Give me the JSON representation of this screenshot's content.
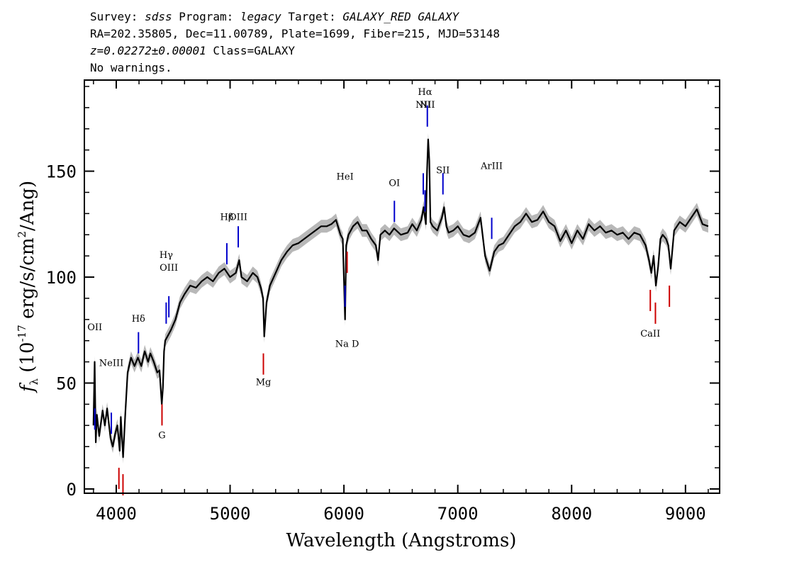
{
  "header": {
    "line1_parts": [
      {
        "t": "Survey: ",
        "i": false
      },
      {
        "t": "sdss",
        "i": true
      },
      {
        "t": " Program: ",
        "i": false
      },
      {
        "t": "legacy",
        "i": true
      },
      {
        "t": " Target: ",
        "i": false
      },
      {
        "t": "GALAXY_RED GALAXY",
        "i": true
      }
    ],
    "line2": "RA=202.35805, Dec=11.00789, Plate=1699, Fiber=215, MJD=53148",
    "line3_redshift": "z=0.02272±0.00001",
    "line3_class": " Class=GALAXY",
    "line4": "No warnings."
  },
  "chart_data": {
    "type": "line",
    "xlabel": "Wavelength (Angstroms)",
    "ylabel": "f_λ (10^-17 erg/s/cm^2/Ang)",
    "xlim": [
      3720,
      9300
    ],
    "ylim": [
      -2,
      193
    ],
    "x_ticks": [
      4000,
      5000,
      6000,
      7000,
      8000,
      9000
    ],
    "y_ticks": [
      0,
      50,
      100,
      150
    ],
    "spectrum_color": "#000000",
    "error_band_color": "#b8b8b8",
    "series": [
      {
        "x": [
          3800,
          3810,
          3820,
          3830,
          3850,
          3880,
          3900,
          3920,
          3950,
          3970,
          3990,
          4010,
          4030,
          4040,
          4060,
          4080,
          4100,
          4130,
          4160,
          4190,
          4220,
          4250,
          4280,
          4300,
          4330,
          4360,
          4380,
          4400,
          4410,
          4420,
          4430,
          4450,
          4480,
          4520,
          4560,
          4600,
          4650,
          4700,
          4750,
          4800,
          4850,
          4900,
          4950,
          5000,
          5050,
          5080,
          5100,
          5150,
          5200,
          5240,
          5270,
          5290,
          5300,
          5320,
          5350,
          5400,
          5450,
          5500,
          5550,
          5600,
          5650,
          5700,
          5750,
          5800,
          5850,
          5890,
          5930,
          5970,
          5990,
          6010,
          6020,
          6040,
          6080,
          6120,
          6160,
          6200,
          6240,
          6280,
          6300,
          6320,
          6360,
          6400,
          6440,
          6500,
          6560,
          6600,
          6640,
          6680,
          6700,
          6720,
          6730,
          6740,
          6750,
          6760,
          6780,
          6820,
          6860,
          6880,
          6900,
          6920,
          6960,
          7000,
          7050,
          7100,
          7150,
          7200,
          7240,
          7280,
          7320,
          7360,
          7400,
          7450,
          7500,
          7550,
          7600,
          7650,
          7700,
          7750,
          7800,
          7850,
          7900,
          7950,
          8000,
          8050,
          8100,
          8150,
          8200,
          8250,
          8300,
          8350,
          8400,
          8450,
          8500,
          8550,
          8600,
          8650,
          8680,
          8700,
          8720,
          8740,
          8760,
          8780,
          8800,
          8830,
          8850,
          8870,
          8900,
          8950,
          9000,
          9050,
          9100,
          9150,
          9200
        ],
        "values": [
          30,
          60,
          22,
          35,
          25,
          37,
          30,
          38,
          24,
          20,
          26,
          30,
          18,
          34,
          15,
          36,
          55,
          62,
          58,
          62,
          58,
          65,
          60,
          64,
          60,
          55,
          56,
          40,
          48,
          65,
          70,
          72,
          75,
          80,
          88,
          92,
          96,
          95,
          98,
          100,
          98,
          102,
          104,
          100,
          102,
          108,
          100,
          98,
          102,
          100,
          95,
          90,
          72,
          88,
          96,
          102,
          108,
          112,
          115,
          116,
          118,
          120,
          122,
          124,
          124,
          125,
          127,
          120,
          118,
          80,
          115,
          120,
          124,
          126,
          122,
          122,
          118,
          115,
          108,
          120,
          122,
          120,
          123,
          120,
          121,
          125,
          122,
          127,
          133,
          125,
          150,
          165,
          155,
          126,
          124,
          122,
          128,
          133,
          124,
          121,
          122,
          124,
          120,
          119,
          121,
          128,
          110,
          103,
          112,
          115,
          116,
          120,
          124,
          126,
          130,
          126,
          127,
          131,
          126,
          124,
          117,
          122,
          116,
          122,
          118,
          125,
          122,
          124,
          121,
          122,
          120,
          121,
          118,
          121,
          120,
          115,
          108,
          102,
          110,
          96,
          105,
          118,
          120,
          118,
          115,
          104,
          122,
          126,
          124,
          128,
          132,
          125,
          124
        ]
      }
    ],
    "emission_lines": [
      {
        "label": "OII",
        "x": 3727,
        "color": "#0000cc",
        "label_y": 75
      },
      {
        "label": "NeIII",
        "x": 3869,
        "color": "#0000cc",
        "label_y": 58
      },
      {
        "label": "Hδ",
        "x": 4102,
        "color": "#0000cc",
        "label_y": 79
      },
      {
        "label": "Hγ",
        "x": 4340,
        "color": "#0000cc",
        "label_y": 109
      },
      {
        "label": "OIII",
        "x": 4363,
        "color": "#0000cc",
        "label_y": 103
      },
      {
        "label": "Hβ",
        "x": 4861,
        "color": "#0000cc",
        "label_y": 127
      },
      {
        "label": "OIII",
        "x": 4959,
        "color": "#0000cc",
        "label_y": 127
      },
      {
        "label": "HeI",
        "x": 5876,
        "color": "#0000cc",
        "label_y": 146
      },
      {
        "label": "OI",
        "x": 6300,
        "color": "#0000cc",
        "label_y": 143
      },
      {
        "label": "NII",
        "x": 6548,
        "color": "#0000cc",
        "label_y": 180
      },
      {
        "label": "Hα",
        "x": 6563,
        "color": "#0000cc",
        "label_y": 186
      },
      {
        "label": "NII",
        "x": 6583,
        "color": "#0000cc",
        "label_y": 180
      },
      {
        "label": "SII",
        "x": 6717,
        "color": "#0000cc",
        "label_y": 149
      },
      {
        "label": "ArIII",
        "x": 7136,
        "color": "#0000cc",
        "label_y": 151
      }
    ],
    "absorption_lines": [
      {
        "label": "",
        "x": 3934,
        "color": "#cc0000",
        "label_y": null
      },
      {
        "label": "",
        "x": 3969,
        "color": "#cc0000",
        "label_y": null
      },
      {
        "label": "G",
        "x": 4304,
        "color": "#cc0000",
        "label_y": 24
      },
      {
        "label": "Mg",
        "x": 5175,
        "color": "#cc0000",
        "label_y": 49
      },
      {
        "label": "Na D",
        "x": 5894,
        "color": "#cc0000",
        "label_y": 67
      },
      {
        "label": "CaII",
        "x": 8498,
        "color": "#cc0000",
        "label_y": 72
      },
      {
        "label": "",
        "x": 8542,
        "color": "#cc0000",
        "label_y": null
      },
      {
        "label": "",
        "x": 8662,
        "color": "#cc0000",
        "label_y": null
      }
    ],
    "redshift": 0.02272
  }
}
